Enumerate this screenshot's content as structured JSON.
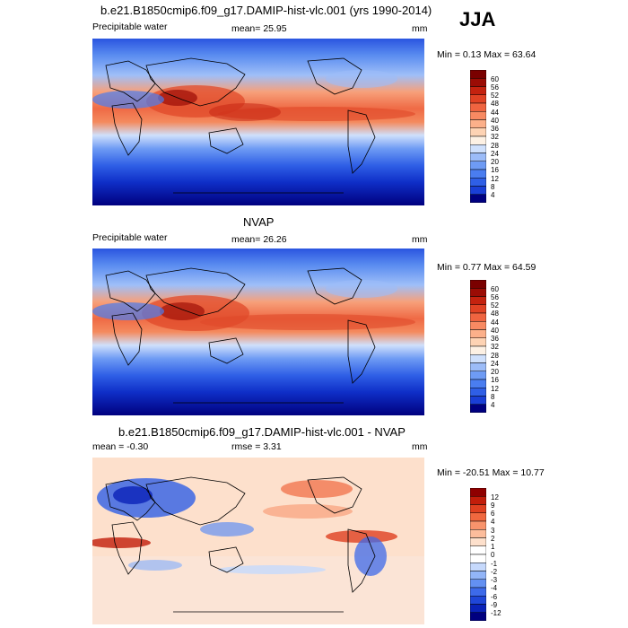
{
  "season": "JJA",
  "colors": {
    "precip_scale": [
      "#00007f",
      "#0a1fb8",
      "#1a3fd6",
      "#2f5fe6",
      "#4a7df0",
      "#6e9bf4",
      "#9cbcf8",
      "#cfe0fc",
      "#fdf1e4",
      "#fdd3b4",
      "#fcb08a",
      "#f88a62",
      "#ef6440",
      "#e04224",
      "#c4220f",
      "#9b0c05",
      "#7a0000"
    ],
    "diff_scale": [
      "#00007f",
      "#0a22b8",
      "#1f46d8",
      "#3d6aea",
      "#6390f2",
      "#92b5f8",
      "#c6d9fc",
      "#ffffff",
      "#fde0cc",
      "#fcbd9c",
      "#f9946c",
      "#f0683f",
      "#df4020",
      "#c21d0a",
      "#8f0000"
    ],
    "continent_outline": "#000000"
  },
  "panels": [
    {
      "id": "model",
      "title": "b.e21.B1850cmip6.f09_g17.DAMIP-hist-vlc.001 (yrs 1990-2014)",
      "left_label": "Precipitable water",
      "mid_label": "mean=  25.95",
      "unit": "mm",
      "minmax": "Min =   0.13 Max =  63.64",
      "colorbar_labels": [
        "60",
        "56",
        "52",
        "48",
        "44",
        "40",
        "36",
        "32",
        "28",
        "24",
        "20",
        "16",
        "12",
        "8",
        "4"
      ]
    },
    {
      "id": "obs",
      "title": "NVAP",
      "left_label": "Precipitable water",
      "mid_label": "mean=  26.26",
      "unit": "mm",
      "minmax": "Min =   0.77 Max =  64.59",
      "colorbar_labels": [
        "60",
        "56",
        "52",
        "48",
        "44",
        "40",
        "36",
        "32",
        "28",
        "24",
        "20",
        "16",
        "12",
        "8",
        "4"
      ]
    },
    {
      "id": "diff",
      "title": "b.e21.B1850cmip6.f09_g17.DAMIP-hist-vlc.001 - NVAP",
      "left_label": "mean =  -0.30",
      "mid_label": "rmse =    3.31",
      "unit": "mm",
      "minmax": "Min = -20.51 Max =  10.77",
      "colorbar_labels": [
        "12",
        "9",
        "6",
        "4",
        "3",
        "2",
        "1",
        "0",
        "-1",
        "-2",
        "-3",
        "-4",
        "-6",
        "-9",
        "-12"
      ]
    }
  ]
}
